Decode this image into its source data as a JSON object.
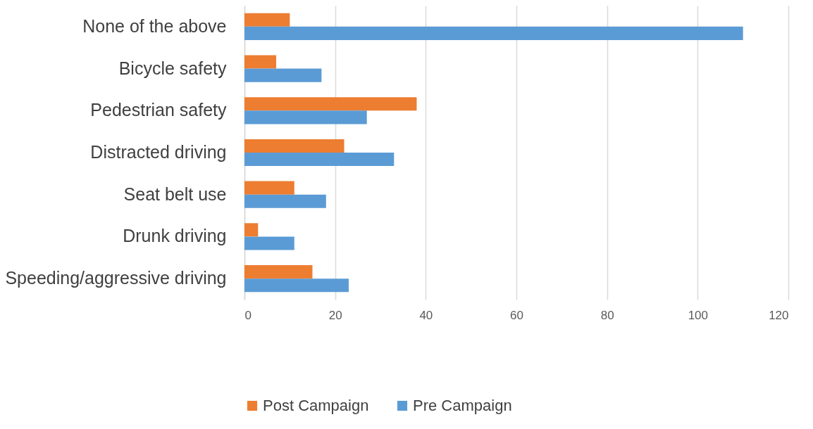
{
  "chart_data": {
    "type": "bar",
    "orientation": "horizontal",
    "categories": [
      "None of the above",
      "Bicycle safety",
      "Pedestrian safety",
      "Distracted driving",
      "Seat belt use",
      "Drunk driving",
      "Speeding/aggressive driving"
    ],
    "series": [
      {
        "name": "Post Campaign",
        "color": "#ed7d31",
        "values": [
          10,
          7,
          38,
          22,
          11,
          3,
          15
        ]
      },
      {
        "name": "Pre Campaign",
        "color": "#5b9bd5",
        "values": [
          110,
          17,
          27,
          33,
          18,
          11,
          23
        ]
      }
    ],
    "xlim": [
      0,
      120
    ],
    "xticks": [
      0,
      20,
      40,
      60,
      80,
      100,
      120
    ],
    "grid": "x",
    "legend": "bottom"
  }
}
